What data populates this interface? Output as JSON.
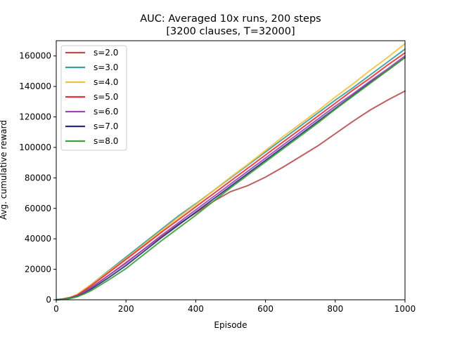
{
  "chart_data": {
    "type": "line",
    "title_lines": [
      "AUC: Averaged 10x runs, 200 steps",
      "[3200 clauses, T=32000]"
    ],
    "xlabel": "Episode",
    "ylabel": "Avg. cumulative reward",
    "xlim": [
      0,
      1000
    ],
    "ylim": [
      0,
      170000
    ],
    "xticks": [
      0,
      200,
      400,
      600,
      800,
      1000
    ],
    "xtick_labels": [
      "0",
      "200",
      "400",
      "600",
      "800",
      "1000"
    ],
    "yticks": [
      0,
      20000,
      40000,
      60000,
      80000,
      100000,
      120000,
      140000,
      160000
    ],
    "ytick_labels": [
      "0",
      "20000",
      "40000",
      "60000",
      "80000",
      "100000",
      "120000",
      "140000",
      "160000"
    ],
    "grid": false,
    "legend_position": "upper-left",
    "series": [
      {
        "name": "s=2.0",
        "color": "#b55050",
        "x": [
          0,
          20,
          40,
          60,
          80,
          100,
          150,
          200,
          250,
          300,
          350,
          400,
          450,
          500,
          550,
          600,
          650,
          700,
          750,
          800,
          850,
          900,
          950,
          1000
        ],
        "y": [
          0,
          600,
          1500,
          3000,
          5500,
          8000,
          16000,
          24500,
          33000,
          41500,
          49500,
          57000,
          64500,
          71000,
          75000,
          80500,
          87000,
          94000,
          101000,
          109000,
          117000,
          124500,
          131000,
          137000
        ]
      },
      {
        "name": "s=3.0",
        "color": "#3a9c9c",
        "x": [
          0,
          20,
          40,
          60,
          80,
          100,
          150,
          200,
          250,
          300,
          350,
          400,
          450,
          500,
          550,
          600,
          650,
          700,
          750,
          800,
          850,
          900,
          950,
          1000
        ],
        "y": [
          0,
          600,
          1600,
          3400,
          6500,
          10000,
          19000,
          28000,
          37000,
          46000,
          55000,
          63000,
          71500,
          80000,
          88500,
          97000,
          105500,
          114000,
          122500,
          131000,
          139000,
          147500,
          156000,
          164500
        ]
      },
      {
        "name": "s=4.0",
        "color": "#f5c040",
        "x": [
          0,
          20,
          40,
          60,
          80,
          100,
          150,
          200,
          250,
          300,
          350,
          400,
          450,
          500,
          550,
          600,
          650,
          700,
          750,
          800,
          850,
          900,
          950,
          1000
        ],
        "y": [
          0,
          600,
          1600,
          3500,
          6800,
          10000,
          18500,
          27000,
          36000,
          45000,
          54000,
          62500,
          71500,
          80500,
          89000,
          98000,
          107000,
          115500,
          124000,
          133000,
          141500,
          150500,
          159000,
          168000
        ]
      },
      {
        "name": "s=5.0",
        "color": "#e83030",
        "x": [
          0,
          20,
          40,
          60,
          80,
          100,
          150,
          200,
          250,
          300,
          350,
          400,
          450,
          500,
          550,
          600,
          650,
          700,
          750,
          800,
          850,
          900,
          950,
          1000
        ],
        "y": [
          0,
          500,
          1400,
          3000,
          6000,
          9200,
          17800,
          26500,
          35200,
          44000,
          52500,
          61000,
          69500,
          78000,
          86500,
          95000,
          103500,
          112000,
          120500,
          129000,
          137500,
          145500,
          154000,
          162000
        ]
      },
      {
        "name": "s=6.0",
        "color": "#9b45b5",
        "x": [
          0,
          20,
          40,
          60,
          80,
          100,
          150,
          200,
          250,
          300,
          350,
          400,
          450,
          500,
          550,
          600,
          650,
          700,
          750,
          800,
          850,
          900,
          950,
          1000
        ],
        "y": [
          0,
          400,
          1200,
          2600,
          5000,
          8000,
          16000,
          24000,
          33000,
          42000,
          50500,
          59000,
          67500,
          76000,
          84500,
          93000,
          101500,
          110000,
          118500,
          127000,
          135000,
          143500,
          151500,
          160000
        ]
      },
      {
        "name": "s=7.0",
        "color": "#2b2b7a",
        "x": [
          0,
          20,
          40,
          60,
          80,
          100,
          150,
          200,
          250,
          300,
          350,
          400,
          450,
          500,
          550,
          600,
          650,
          700,
          750,
          800,
          850,
          900,
          950,
          1000
        ],
        "y": [
          0,
          350,
          1000,
          2200,
          4200,
          7000,
          14500,
          22500,
          31500,
          40500,
          49000,
          57500,
          66000,
          74500,
          83000,
          91500,
          100000,
          108500,
          117000,
          125500,
          134000,
          142500,
          150500,
          159000
        ]
      },
      {
        "name": "s=8.0",
        "color": "#3aa03a",
        "x": [
          0,
          20,
          40,
          60,
          80,
          100,
          150,
          200,
          250,
          300,
          350,
          400,
          450,
          500,
          550,
          600,
          650,
          700,
          750,
          800,
          850,
          900,
          950,
          1000
        ],
        "y": [
          0,
          300,
          900,
          2000,
          3800,
          6000,
          13000,
          20500,
          29500,
          38500,
          47000,
          55500,
          64500,
          73500,
          82000,
          90500,
          99000,
          107500,
          116000,
          125000,
          133500,
          142000,
          150500,
          159000
        ]
      }
    ]
  }
}
